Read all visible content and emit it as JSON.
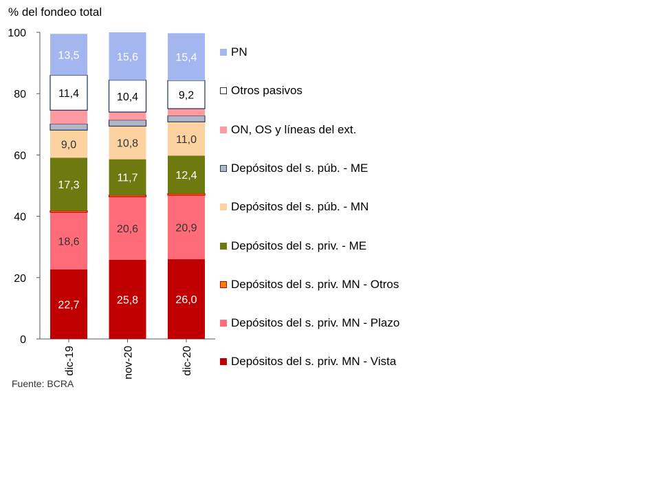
{
  "chart_data": {
    "type": "bar",
    "stacked": true,
    "ylabel": "% del fondeo total",
    "ylim": [
      0,
      100
    ],
    "yticks": [
      0,
      20,
      40,
      60,
      80,
      100
    ],
    "categories": [
      "dic-19",
      "nov-20",
      "dic-20"
    ],
    "series": [
      {
        "name": "Depósitos del s. priv. MN - Vista",
        "color": "#c00000",
        "label_color": "#ffffff",
        "values": [
          22.7,
          25.8,
          26.0
        ],
        "labels": [
          "22,7",
          "25,8",
          "26,0"
        ]
      },
      {
        "name": "Depósitos del s. priv. MN - Plazo",
        "color": "#ff6b78",
        "label_color": "#333333",
        "values": [
          18.6,
          20.6,
          20.9
        ],
        "labels": [
          "18,6",
          "20,6",
          "20,9"
        ]
      },
      {
        "name": "Depósitos del s. priv. MN - Otros",
        "color": "#ff8000",
        "border": "#c00000",
        "label_color": "#333333",
        "values": [
          0.5,
          0.5,
          0.5
        ],
        "labels": [
          "",
          "",
          ""
        ]
      },
      {
        "name": "Depósitos del s. priv. - ME",
        "color": "#6e7a0f",
        "label_color": "#ffffff",
        "values": [
          17.3,
          11.7,
          12.4
        ],
        "labels": [
          "17,3",
          "11,7",
          "12,4"
        ]
      },
      {
        "name": "Depósitos del s. púb. - MN",
        "color": "#fcd2a0",
        "label_color": "#333333",
        "values": [
          9.0,
          10.8,
          11.0
        ],
        "labels": [
          "9,0",
          "10,8",
          "11,0"
        ]
      },
      {
        "name": "Depósitos del s. púb. - ME",
        "color": "#aeb7c8",
        "border": "#2f3a55",
        "label_color": "#333333",
        "values": [
          2.0,
          2.0,
          2.0
        ],
        "labels": [
          "",
          "",
          ""
        ]
      },
      {
        "name": "ON, OS y líneas del ext.",
        "color": "#ff9aa2",
        "label_color": "#333333",
        "values": [
          4.5,
          2.6,
          2.3
        ],
        "labels": [
          "",
          "",
          ""
        ]
      },
      {
        "name": "Otros pasivos",
        "color": "#ffffff",
        "border": "#1f2d50",
        "label_color": "#000000",
        "values": [
          11.4,
          10.4,
          9.2
        ],
        "labels": [
          "11,4",
          "10,4",
          "9,2"
        ]
      },
      {
        "name": "PN",
        "color": "#a4b6f0",
        "label_color": "#ffffff",
        "values": [
          13.5,
          15.6,
          15.4
        ],
        "labels": [
          "13,5",
          "15,6",
          "15,4"
        ]
      }
    ],
    "legend_order": [
      "PN",
      "Otros pasivos",
      "ON, OS y líneas del ext.",
      "Depósitos del s. púb. - ME",
      "Depósitos del s. púb. - MN",
      "Depósitos del s. priv. - ME",
      "Depósitos del s. priv. MN - Otros",
      "Depósitos del s. priv. MN - Plazo",
      "Depósitos del s. priv. MN - Vista"
    ],
    "legend_position": "right",
    "grid": false
  },
  "source": "Fuente: BCRA"
}
